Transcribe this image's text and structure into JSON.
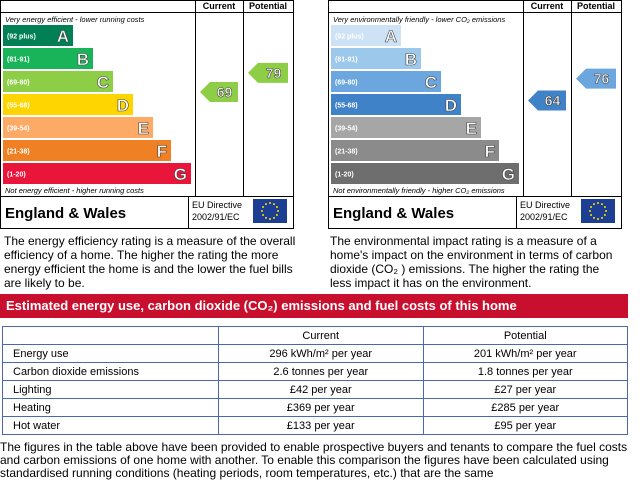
{
  "charts": [
    {
      "headers": [
        "Current",
        "Potential"
      ],
      "top_note": "Very energy efficient - lower running costs",
      "bottom_note": "Not energy efficient - higher running costs",
      "bands": [
        {
          "range": "(92 plus)",
          "letter": "A",
          "color": "#008054"
        },
        {
          "range": "(81-91)",
          "letter": "B",
          "color": "#19b459"
        },
        {
          "range": "(69-80)",
          "letter": "C",
          "color": "#8dce46"
        },
        {
          "range": "(55-68)",
          "letter": "D",
          "color": "#ffd500"
        },
        {
          "range": "(39-54)",
          "letter": "E",
          "color": "#fcaa65"
        },
        {
          "range": "(21-38)",
          "letter": "F",
          "color": "#ef8023"
        },
        {
          "range": "(1-20)",
          "letter": "G",
          "color": "#e9153b"
        }
      ],
      "current": 69,
      "potential": 79,
      "region": "England & Wales",
      "directive": [
        "EU Directive",
        "2002/91/EC"
      ],
      "description": "The energy efficiency rating is a measure of the overall efficiency of a home. The higher the rating the more energy efficient the home is and the lower the fuel bills are likely to be."
    },
    {
      "headers": [
        "Current",
        "Potential"
      ],
      "top_note": "Very environmentally friendly - lower CO₂ emissions",
      "bottom_note": "Not environmentally friendly - higher CO₂ emissions",
      "bands": [
        {
          "range": "(92 plus)",
          "letter": "A",
          "color": "#cde3f5"
        },
        {
          "range": "(81-91)",
          "letter": "B",
          "color": "#9cc8ec"
        },
        {
          "range": "(69-80)",
          "letter": "C",
          "color": "#6ba7de"
        },
        {
          "range": "(55-68)",
          "letter": "D",
          "color": "#3f82c8"
        },
        {
          "range": "(39-54)",
          "letter": "E",
          "color": "#a6a6a6"
        },
        {
          "range": "(21-38)",
          "letter": "F",
          "color": "#8b8b8b"
        },
        {
          "range": "(1-20)",
          "letter": "G",
          "color": "#6e6e6e"
        }
      ],
      "current": 64,
      "potential": 76,
      "region": "England & Wales",
      "directive": [
        "EU Directive",
        "2002/91/EC"
      ],
      "description": "The environmental impact rating is a measure of a home's impact on the environment in terms of carbon dioxide (CO₂ ) emissions. The higher the rating the less impact it has on the environment."
    }
  ],
  "section_title": "Estimated energy use, carbon dioxide (CO₂) emissions and fuel costs of this home",
  "table": {
    "header": [
      "",
      "Current",
      "Potential"
    ],
    "rows": [
      [
        "Energy use",
        "296 kWh/m² per year",
        "201 kWh/m² per year"
      ],
      [
        "Carbon dioxide emissions",
        "2.6 tonnes per year",
        "1.8 tonnes per year"
      ],
      [
        "Lighting",
        "£42 per year",
        "£27 per year"
      ],
      [
        "Heating",
        "£369 per year",
        "£285 per year"
      ],
      [
        "Hot water",
        "£133 per year",
        "£95 per year"
      ]
    ]
  },
  "footer_text": "The figures in the table above have been provided to enable prospective buyers and tenants to compare the fuel costs and carbon emissions of one home with another. To enable this comparison the figures have been calculated using standardised running conditions (heating periods, room temperatures, etc.) that are the same"
}
